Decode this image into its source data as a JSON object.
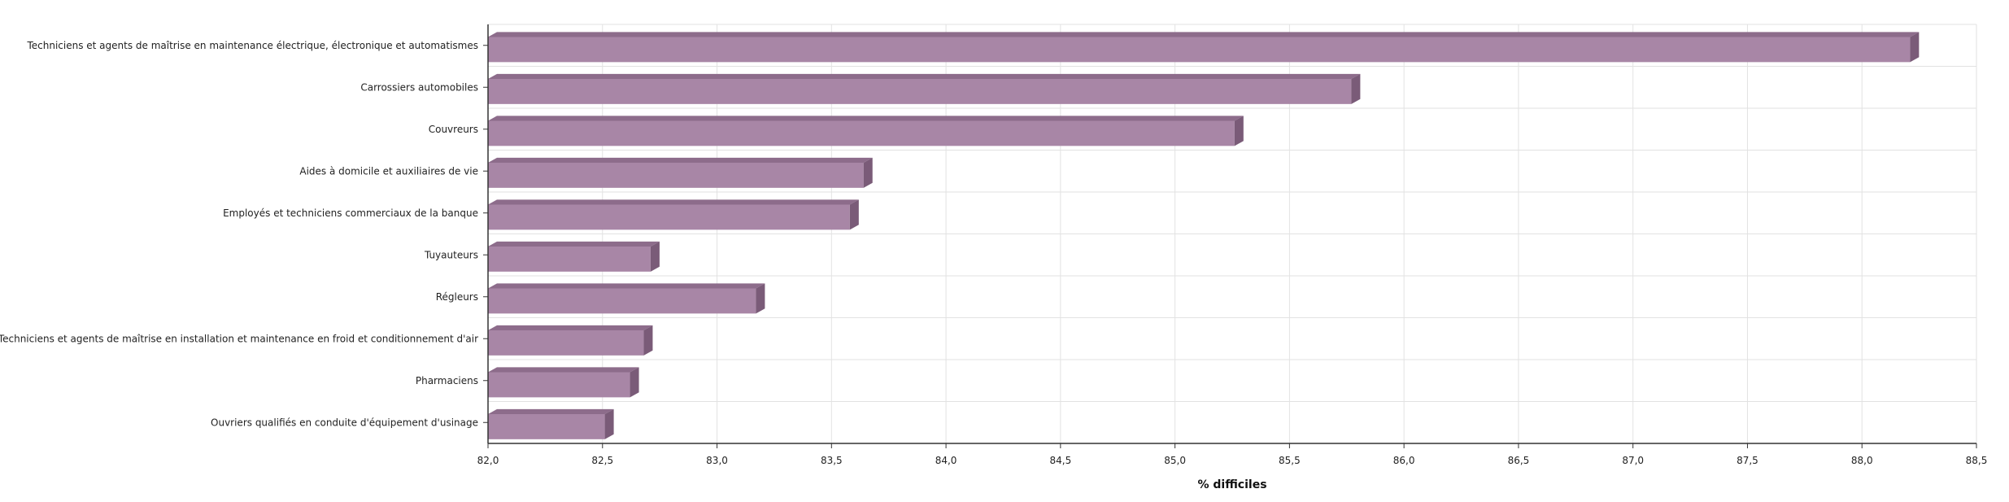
{
  "chart_data": {
    "type": "bar",
    "orientation": "horizontal",
    "categories": [
      "Techniciens et agents de maîtrise en maintenance électrique, électronique et automatismes",
      "Carrossiers automobiles",
      "Couvreurs",
      "Aides à domicile et auxiliaires de vie",
      "Employés et techniciens commerciaux de la banque",
      "Tuyauteurs",
      "Régleurs",
      "Techniciens et agents de maîtrise en installation et maintenance en froid et conditionnement d'air",
      "Pharmaciens",
      "Ouvriers qualifiés en conduite d'équipement d'usinage"
    ],
    "values": [
      88.21,
      85.77,
      85.26,
      83.64,
      83.58,
      82.71,
      83.17,
      82.68,
      82.62,
      82.51
    ],
    "xlabel": "% difficiles",
    "xlim": [
      82.0,
      88.5
    ],
    "ticks": [
      "82,0",
      "82,5",
      "83,0",
      "83,5",
      "84,0",
      "84,5",
      "85,0",
      "85,5",
      "86,0",
      "86,5",
      "87,0",
      "87,5",
      "88,0",
      "88,5"
    ],
    "grid": true,
    "colors": {
      "bar_front": "#a886a6",
      "bar_top": "#8d6c8b",
      "bar_side": "#7a5b78",
      "grid": "#e2e2e2",
      "axis": "#333333"
    }
  }
}
